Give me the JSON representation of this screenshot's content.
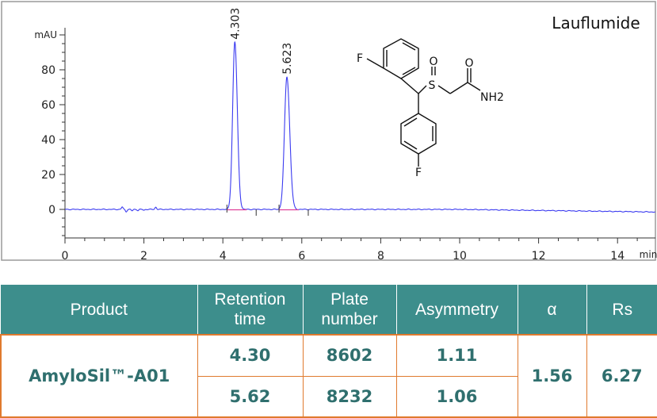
{
  "chart_data": {
    "type": "line",
    "title": "Lauflumide",
    "ylabel": "mAU",
    "xlabel": "min",
    "xlim": [
      0,
      15
    ],
    "ylim": [
      -17,
      105
    ],
    "x_ticks": [
      0,
      2,
      4,
      6,
      8,
      10,
      12,
      14
    ],
    "y_ticks": [
      0,
      20,
      40,
      60,
      80
    ],
    "grid": false,
    "line_color": "#3a3af0",
    "baseline_color": "#e0409a",
    "peaks": [
      {
        "label": "4.303",
        "rt": 4.303,
        "height": 96,
        "sigma": 0.055
      },
      {
        "label": "5.623",
        "rt": 5.623,
        "height": 76,
        "sigma": 0.062
      }
    ],
    "noise": [
      {
        "t": 1.45,
        "a": 1.4
      },
      {
        "t": 1.55,
        "a": -1.3
      },
      {
        "t": 1.7,
        "a": -0.8
      },
      {
        "t": 1.85,
        "a": -0.6
      },
      {
        "t": 2.0,
        "a": -0.5
      },
      {
        "t": 2.3,
        "a": 1.3
      }
    ],
    "drift_end": -1.5
  },
  "molecule": {
    "atoms": {
      "f_top": "F",
      "f_bottom": "F",
      "s": "S",
      "o_sulfoxide": "O",
      "o_amide": "O",
      "nh2": "NH2"
    }
  },
  "table": {
    "headers": [
      "Product",
      "Retention time",
      "Plate number",
      "Asymmetry",
      "α",
      "Rs"
    ],
    "product": "AmyloSil™-A01",
    "rows": [
      {
        "retention": "4.30",
        "plates": "8602",
        "asymmetry": "1.11"
      },
      {
        "retention": "5.62",
        "plates": "8232",
        "asymmetry": "1.06"
      }
    ],
    "alpha": "1.56",
    "rs": "6.27",
    "colors": {
      "header_bg": "#3d8e8c",
      "border": "#e07a2e",
      "value_text": "#2f6f6e"
    }
  }
}
